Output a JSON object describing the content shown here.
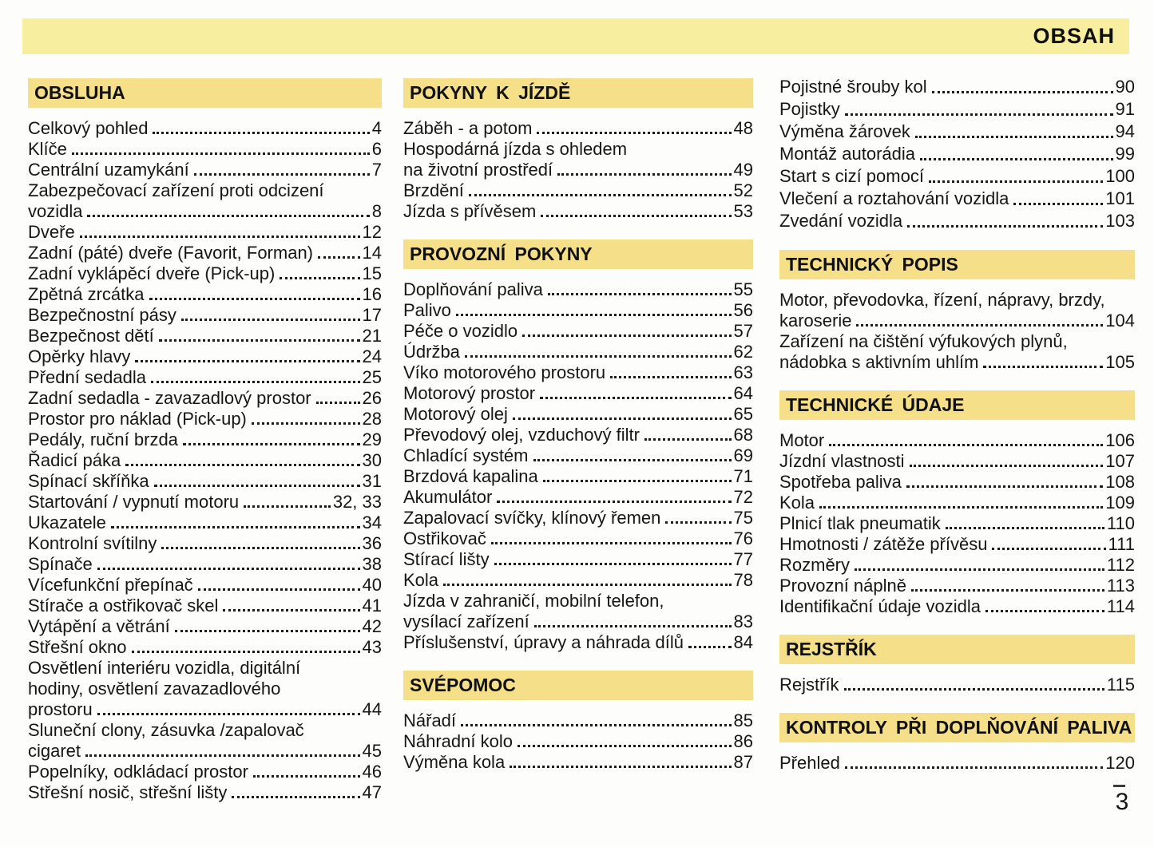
{
  "page": {
    "title": "OBSAH",
    "page_number": "3",
    "banner_color": "#f7ee9f",
    "section_header_color": "#f5df88"
  },
  "columns": [
    {
      "sections": [
        {
          "key": "obsluha",
          "header": "OBSLUHA",
          "entries": [
            {
              "label": "Celkový pohled",
              "page": "4"
            },
            {
              "label": "Klíče",
              "page": "6"
            },
            {
              "label": "Centrální uzamykání",
              "page": "7"
            },
            {
              "pre": [
                "Zabezpečovací zařízení proti odcizení"
              ],
              "label": "vozidla",
              "page": "8"
            },
            {
              "label": "Dveře",
              "page": "12"
            },
            {
              "label": "Zadní (páté) dveře (Favorit, Forman)",
              "page": "14"
            },
            {
              "label": "Zadní vyklápěcí dveře (Pick-up)",
              "page": "15"
            },
            {
              "label": "Zpětná zrcátka",
              "page": "16"
            },
            {
              "label": "Bezpečnostní pásy",
              "page": "17"
            },
            {
              "label": "Bezpečnost dětí",
              "page": "21"
            },
            {
              "label": "Opěrky hlavy",
              "page": "24"
            },
            {
              "label": "Přední sedadla",
              "page": "25"
            },
            {
              "label": "Zadní sedadla - zavazadlový prostor",
              "page": "26"
            },
            {
              "label": "Prostor pro náklad (Pick-up)",
              "page": "28"
            },
            {
              "label": "Pedály, ruční brzda",
              "page": "29"
            },
            {
              "label": "Řadicí páka",
              "page": "30"
            },
            {
              "label": "Spínací skříňka",
              "page": "31"
            },
            {
              "label": "Startování / vypnutí motoru",
              "page": "32, 33"
            },
            {
              "label": "Ukazatele",
              "page": "34"
            },
            {
              "label": "Kontrolní svítilny",
              "page": "36"
            },
            {
              "label": "Spínače",
              "page": "38"
            },
            {
              "label": "Vícefunkční přepínač",
              "page": "40"
            },
            {
              "label": "Stírače a ostřikovač skel",
              "page": "41"
            },
            {
              "label": "Vytápění a větrání",
              "page": "42"
            },
            {
              "label": "Střešní okno",
              "page": "43"
            },
            {
              "pre": [
                "Osvětlení interiéru vozidla, digitální",
                "hodiny, osvětlení zavazadlového"
              ],
              "label": "prostoru",
              "page": "44"
            },
            {
              "pre": [
                "Sluneční clony, zásuvka /zapalovač"
              ],
              "label": "cigaret",
              "page": "45"
            },
            {
              "label": "Popelníky, odkládací prostor",
              "page": "46"
            },
            {
              "label": "Střešní nosič, střešní lišty",
              "page": "47"
            }
          ]
        }
      ]
    },
    {
      "sections": [
        {
          "key": "pokyny-k-jizde",
          "header": "POKYNY K JÍZDĚ",
          "entries": [
            {
              "label": "Záběh - a potom",
              "page": "48"
            },
            {
              "pre": [
                "Hospodárná jízda s ohledem"
              ],
              "label": "na životní prostředí",
              "page": "49"
            },
            {
              "label": "Brzdění",
              "page": "52"
            },
            {
              "label": "Jízda s přívěsem",
              "page": "53"
            }
          ]
        },
        {
          "key": "provozni-pokyny",
          "header": "PROVOZNÍ POKYNY",
          "entries": [
            {
              "label": "Doplňování paliva",
              "page": "55"
            },
            {
              "label": "Palivo",
              "page": "56"
            },
            {
              "label": "Péče o vozidlo",
              "page": "57"
            },
            {
              "label": "Údržba",
              "page": "62"
            },
            {
              "label": "Víko motorového prostoru",
              "page": "63"
            },
            {
              "label": "Motorový prostor",
              "page": "64"
            },
            {
              "label": "Motorový olej",
              "page": "65"
            },
            {
              "label": "Převodový olej, vzduchový filtr",
              "page": "68"
            },
            {
              "label": "Chladící systém",
              "page": "69"
            },
            {
              "label": "Brzdová kapalina",
              "page": "71"
            },
            {
              "label": "Akumulátor",
              "page": "72"
            },
            {
              "label": "Zapalovací svíčky, klínový řemen",
              "page": "75"
            },
            {
              "label": "Ostřikovač",
              "page": "76"
            },
            {
              "label": "Stírací lišty",
              "page": "77"
            },
            {
              "label": "Kola",
              "page": "78"
            },
            {
              "pre": [
                "Jízda v zahraničí, mobilní telefon,"
              ],
              "label": "vysílací zařízení",
              "page": "83"
            },
            {
              "label": "Příslušenství, úpravy a náhrada dílů",
              "page": "84"
            }
          ]
        },
        {
          "key": "svepomoc",
          "header": "SVÉPOMOC",
          "entries": [
            {
              "label": "Nářadí",
              "page": "85"
            },
            {
              "label": "Náhradní kolo",
              "page": "86"
            },
            {
              "label": "Výměna kola",
              "page": "87"
            }
          ]
        }
      ]
    },
    {
      "sections": [
        {
          "key": "continuation",
          "header": null,
          "entries": [
            {
              "label": "Pojistné šrouby kol",
              "page": "90"
            },
            {
              "label": "Pojistky",
              "page": "91"
            },
            {
              "label": "Výměna žárovek",
              "page": "94"
            },
            {
              "label": "Montáž autorádia",
              "page": "99"
            },
            {
              "label": "Start s cizí pomocí",
              "page": "100"
            },
            {
              "label": "Vlečení a roztahování vozidla",
              "page": "101"
            },
            {
              "label": "Zvedání vozidla",
              "page": "103"
            }
          ]
        },
        {
          "key": "technicky-popis",
          "header": "TECHNICKÝ POPIS",
          "entries": [
            {
              "pre": [
                "Motor, převodovka, řízení, nápravy, brzdy,"
              ],
              "label": "karoserie",
              "page": "104"
            },
            {
              "pre": [
                "Zařízení na čištění výfukových plynů,"
              ],
              "label": "nádobka s aktivním uhlím",
              "page": "105"
            }
          ]
        },
        {
          "key": "technicke-udaje",
          "header": "TECHNICKÉ ÚDAJE",
          "entries": [
            {
              "label": "Motor",
              "page": "106"
            },
            {
              "label": "Jízdní vlastnosti",
              "page": "107"
            },
            {
              "label": "Spotřeba paliva",
              "page": "108"
            },
            {
              "label": "Kola",
              "page": "109"
            },
            {
              "label": "Plnicí tlak pneumatik",
              "page": "110"
            },
            {
              "label": "Hmotnosti / zátěže přívěsu",
              "page": "111"
            },
            {
              "label": "Rozměry",
              "page": "112"
            },
            {
              "label": "Provozní náplně",
              "page": "113"
            },
            {
              "label": "Identifikační údaje vozidla",
              "page": "114"
            }
          ]
        },
        {
          "key": "rejstrik",
          "header": "REJSTŘÍK",
          "entries": [
            {
              "label": "Rejstřík",
              "page": "115"
            }
          ]
        },
        {
          "key": "kontroly-pri-doplnovani-paliva",
          "header": "KONTROLY PŘI DOPLŇOVÁNÍ PALIVA",
          "entries": [
            {
              "label": "Přehled",
              "page": "120"
            }
          ]
        }
      ]
    }
  ]
}
